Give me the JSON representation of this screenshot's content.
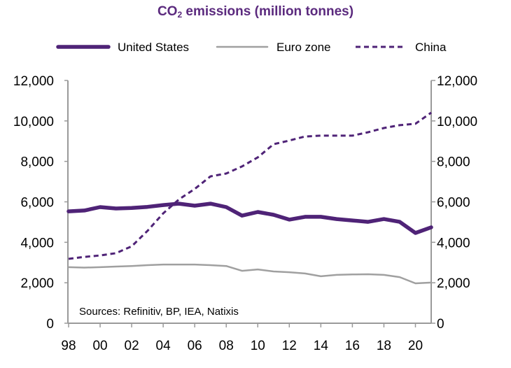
{
  "chart_data": {
    "type": "line",
    "title_main": "CO",
    "title_sub": "2",
    "title_rest": " emissions (million tonnes)",
    "title": "CO2 emissions (million tonnes)",
    "xlabel": "",
    "ylabel": "",
    "x": [
      1998,
      1999,
      2000,
      2001,
      2002,
      2003,
      2004,
      2005,
      2006,
      2007,
      2008,
      2009,
      2010,
      2011,
      2012,
      2013,
      2014,
      2015,
      2016,
      2017,
      2018,
      2019,
      2020,
      2021
    ],
    "xlim": [
      1998,
      2021
    ],
    "x_ticks": [
      1998,
      2000,
      2002,
      2004,
      2006,
      2008,
      2010,
      2012,
      2014,
      2016,
      2018,
      2020
    ],
    "x_tick_labels": [
      "98",
      "00",
      "02",
      "04",
      "06",
      "08",
      "10",
      "12",
      "14",
      "16",
      "18",
      "20"
    ],
    "ylim": [
      0,
      12000
    ],
    "y_ticks": [
      0,
      2000,
      4000,
      6000,
      8000,
      10000,
      12000
    ],
    "y_tick_labels": [
      "0",
      "2,000",
      "4,000",
      "6,000",
      "8,000",
      "10,000",
      "12,000"
    ],
    "y_right_tick_labels": [
      "0",
      "2,000",
      "4,000",
      "6,000",
      "8,000",
      "10,000",
      "12,000"
    ],
    "grid": false,
    "legend_position": "top",
    "annotation": "Sources: Refinitiv, BP, IEA, Natixis",
    "series": [
      {
        "name": "United States",
        "color": "#4f2377",
        "style": "solid-thick",
        "values": [
          5530,
          5570,
          5740,
          5670,
          5700,
          5750,
          5840,
          5910,
          5810,
          5910,
          5740,
          5320,
          5500,
          5360,
          5120,
          5260,
          5260,
          5150,
          5080,
          5010,
          5150,
          5010,
          4460,
          4740
        ]
      },
      {
        "name": "Euro zone",
        "color": "#a0a0a0",
        "style": "solid-thin",
        "values": [
          2770,
          2750,
          2770,
          2800,
          2830,
          2870,
          2900,
          2900,
          2900,
          2870,
          2830,
          2590,
          2660,
          2560,
          2520,
          2460,
          2320,
          2390,
          2410,
          2420,
          2390,
          2280,
          1970,
          2010
        ]
      },
      {
        "name": "China",
        "color": "#4f2377",
        "style": "dashed",
        "values": [
          3180,
          3280,
          3350,
          3460,
          3800,
          4560,
          5430,
          6120,
          6640,
          7260,
          7400,
          7750,
          8200,
          8850,
          9030,
          9230,
          9270,
          9270,
          9270,
          9440,
          9650,
          9790,
          9860,
          10410
        ]
      }
    ]
  }
}
